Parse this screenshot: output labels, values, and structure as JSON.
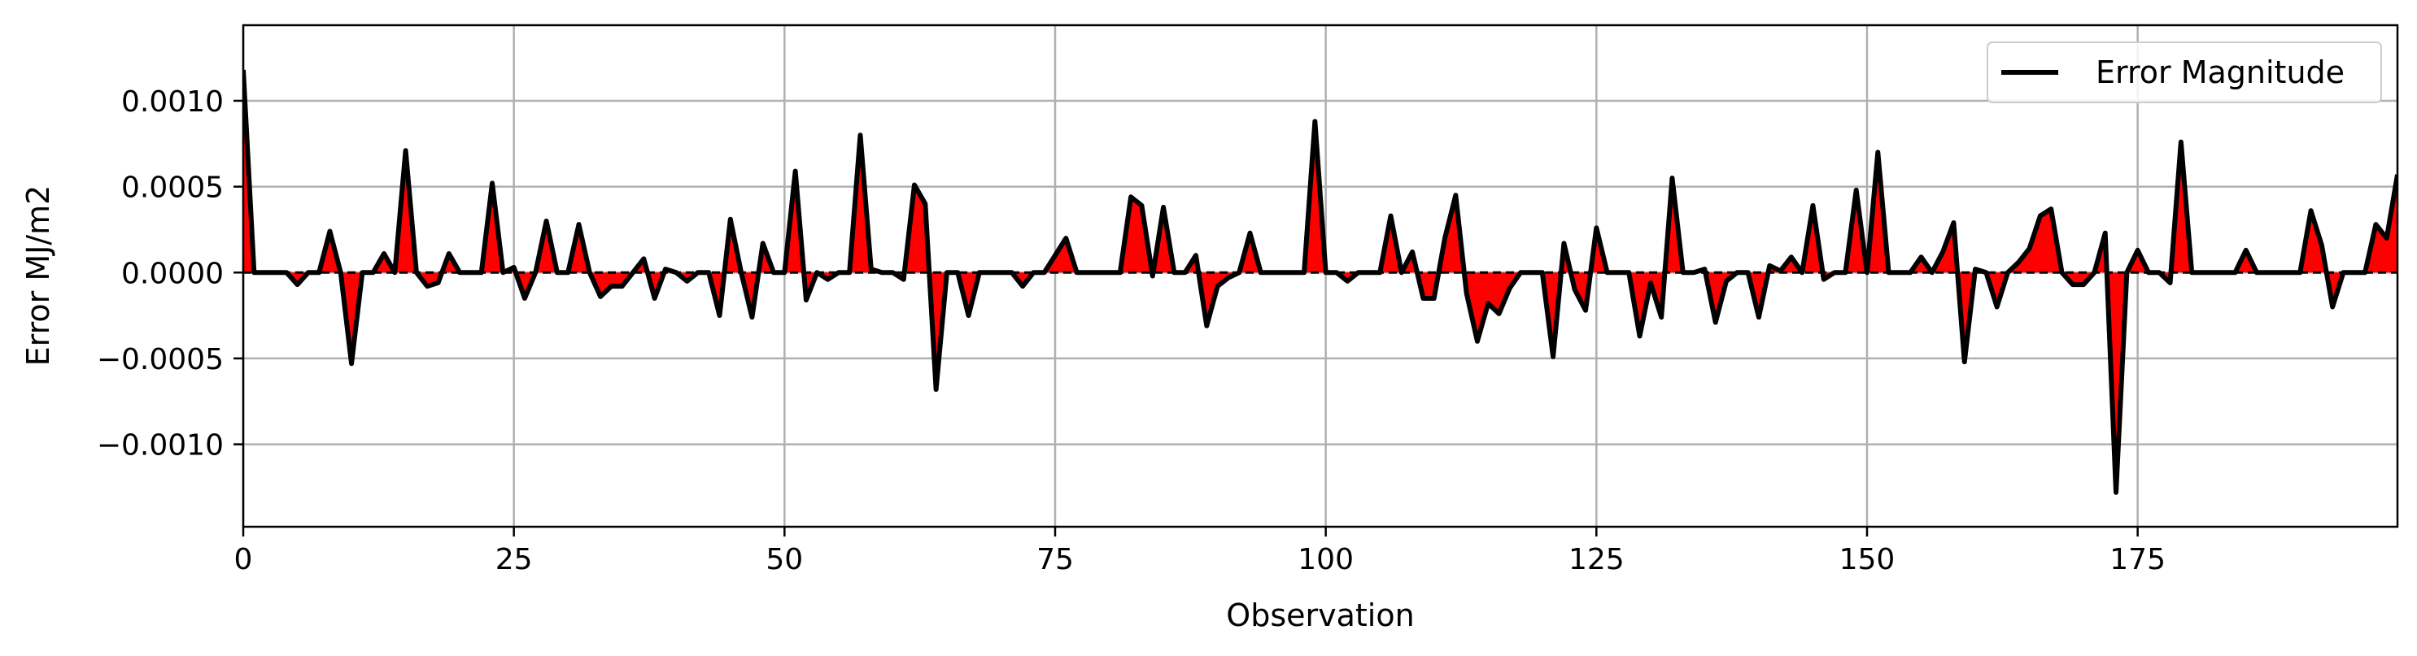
{
  "chart_data": {
    "type": "line",
    "xlabel": "Observation",
    "ylabel": "Error MJ/m2",
    "xlim": [
      0,
      199
    ],
    "ylim": [
      -0.00148,
      0.00144
    ],
    "xticks": [
      0,
      25,
      50,
      75,
      100,
      125,
      150,
      175
    ],
    "xtick_labels": [
      "0",
      "25",
      "50",
      "75",
      "100",
      "125",
      "150",
      "175"
    ],
    "yticks": [
      0.001,
      0.0005,
      0.0,
      -0.0005,
      -0.001
    ],
    "ytick_labels": [
      "0.0010",
      "0.0005",
      "0.0000",
      "−0.0005",
      "−0.0010"
    ],
    "grid": true,
    "legend_position": "top-right",
    "fill_color": "#ff0000",
    "line_color": "#000000",
    "series": [
      {
        "name": "Error Magnitude",
        "values": [
          0.00118,
          0,
          0,
          0,
          0,
          -7e-05,
          0,
          0,
          0.00024,
          0,
          -0.00053,
          0,
          0,
          0.00011,
          0,
          0.00071,
          0,
          -8e-05,
          -6e-05,
          0.00011,
          0,
          0,
          0,
          0.00052,
          0,
          3e-05,
          -0.00015,
          0,
          0.0003,
          0,
          0,
          0.00028,
          0,
          -0.00014,
          -8e-05,
          -8e-05,
          0,
          8e-05,
          -0.00015,
          2e-05,
          0,
          -5e-05,
          0,
          0,
          -0.00025,
          0.00031,
          0,
          -0.00026,
          0.00017,
          0,
          0,
          0.00059,
          -0.00016,
          0,
          -4e-05,
          0,
          0,
          0.0008,
          2e-05,
          0,
          0,
          -4e-05,
          0.00051,
          0.0004,
          -0.00068,
          0,
          0,
          -0.00025,
          0,
          0,
          0,
          0,
          -8e-05,
          0,
          0,
          0.0001,
          0.0002,
          0,
          0,
          0,
          0,
          0,
          0.00044,
          0.00039,
          -2e-05,
          0.00038,
          0,
          0,
          0.0001,
          -0.00031,
          -8e-05,
          -3e-05,
          0,
          0.00023,
          0,
          0,
          0,
          0,
          0,
          0.00088,
          0,
          0,
          -5e-05,
          0,
          0,
          0,
          0.00033,
          0,
          0.00012,
          -0.00015,
          -0.00015,
          0.0002,
          0.00045,
          -0.00012,
          -0.0004,
          -0.00018,
          -0.00024,
          -9e-05,
          0,
          0,
          0,
          -0.00049,
          0.00017,
          -0.0001,
          -0.00022,
          0.00026,
          0,
          0,
          0,
          -0.00037,
          -6e-05,
          -0.00026,
          0.00055,
          0,
          0,
          2e-05,
          -0.00029,
          -5e-05,
          0,
          0,
          -0.00026,
          4e-05,
          1e-05,
          9e-05,
          0,
          0.00039,
          -4e-05,
          0,
          0,
          0.00048,
          0,
          0.0007,
          0,
          0,
          0,
          9e-05,
          0,
          0.00012,
          0.00029,
          -0.00052,
          2e-05,
          0,
          -0.0002,
          0,
          6e-05,
          0.00014,
          0.00033,
          0.00037,
          0,
          -7e-05,
          -7e-05,
          0,
          0.00023,
          -0.00128,
          0,
          0.00013,
          0,
          0,
          -6e-05,
          0.00076,
          0,
          0,
          0,
          0,
          0,
          0.00013,
          0,
          0,
          0,
          0,
          0,
          0.00036,
          0.00016,
          -0.0002,
          0,
          0,
          0,
          0.00028,
          0.0002,
          0.00057
        ]
      }
    ]
  }
}
